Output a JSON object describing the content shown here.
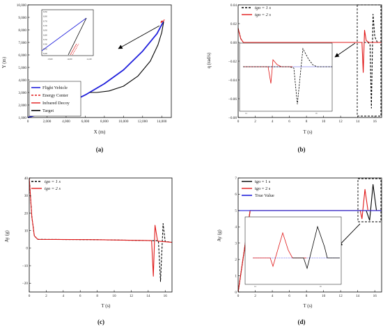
{
  "chart_data": [
    {
      "id": "a",
      "type": "line",
      "caption": "(a)",
      "xlabel": "X (m)",
      "ylabel": "Y (m)",
      "xlim": [
        0,
        15000
      ],
      "ylim": [
        1000,
        10000
      ],
      "xticks": [
        0,
        2000,
        4000,
        6000,
        8000,
        10000,
        12000,
        14000
      ],
      "xtick_labels": [
        "0",
        "2,000",
        "4,000",
        "6,000",
        "8,000",
        "10,000",
        "12,000",
        "14,000"
      ],
      "yticks": [
        1000,
        2000,
        3000,
        4000,
        5000,
        6000,
        7000,
        8000,
        9000,
        10000
      ],
      "ytick_labels": [
        "1,000",
        "2,000",
        "3,000",
        "4,000",
        "5,000",
        "6,000",
        "7,000",
        "8,000",
        "9,000",
        "10,000"
      ],
      "legend": {
        "placement": "bottom-left",
        "entries": [
          "Flight Vehicle",
          "Energy Center",
          "Infrared Decoy",
          "Target"
        ]
      },
      "series": [
        {
          "name": "Flight Vehicle",
          "color": "#1f1fdc",
          "style": "solid",
          "points": [
            [
              0,
              1000
            ],
            [
              2000,
              1450
            ],
            [
              4000,
              2050
            ],
            [
              6000,
              2800
            ],
            [
              8000,
              3700
            ],
            [
              10000,
              4800
            ],
            [
              12000,
              6300
            ],
            [
              13500,
              7700
            ],
            [
              14100,
              8550
            ],
            [
              14200,
              8650
            ]
          ]
        },
        {
          "name": "Target",
          "color": "#000000",
          "style": "solid",
          "points": [
            [
              6500,
              3000
            ],
            [
              7200,
              3000
            ],
            [
              8500,
              3120
            ],
            [
              10000,
              3500
            ],
            [
              11500,
              4300
            ],
            [
              12800,
              5500
            ],
            [
              13600,
              6800
            ],
            [
              14000,
              7800
            ],
            [
              14200,
              8650
            ]
          ]
        },
        {
          "name": "Infrared Decoy",
          "color": "#e01818",
          "style": "solid",
          "points": [
            [
              13900,
              8560
            ],
            [
              14100,
              8700
            ],
            [
              14250,
              8720
            ]
          ]
        },
        {
          "name": "Energy Center",
          "color": "#e01818",
          "style": "dashed",
          "points": [
            [
              13900,
              8620
            ],
            [
              14100,
              8760
            ],
            [
              14300,
              8800
            ]
          ]
        }
      ],
      "inset": {
        "xtick_labels": [
          "13,900",
          "14,000",
          "14,100"
        ],
        "ytick_labels": [
          "8,400",
          "8,450",
          "8,500",
          "8,550",
          "8,600",
          "8,650",
          "8,700",
          "8,750",
          "8,800",
          "8,850"
        ]
      },
      "annotation": "arrow from zoom region to inset"
    },
    {
      "id": "b",
      "type": "line",
      "caption": "(b)",
      "xlabel": "T (s)",
      "ylabel": "q (rad/s)",
      "xlim": [
        0,
        16.8
      ],
      "ylim": [
        -0.08,
        0.04
      ],
      "xticks": [
        0,
        2,
        4,
        6,
        8,
        10,
        12,
        14,
        16
      ],
      "yticks": [
        -0.08,
        -0.06,
        -0.04,
        -0.02,
        0.0,
        0.02,
        0.04
      ],
      "ytick_labels": [
        "−0.08",
        "−0.06",
        "−0.04",
        "−0.02",
        "0.00",
        "0.02",
        "0.04"
      ],
      "legend": {
        "placement": "top-left",
        "entries": [
          "tgo = 1 s",
          "tgo = 2 s"
        ]
      },
      "series": [
        {
          "name": "tgo = 1 s",
          "color": "#000000",
          "style": "dashed",
          "points": [
            [
              0,
              0.015
            ],
            [
              0.3,
              0.004
            ],
            [
              0.6,
              0
            ],
            [
              15.2,
              0
            ],
            [
              15.45,
              -0.002
            ],
            [
              15.6,
              -0.07
            ],
            [
              15.8,
              0.03
            ],
            [
              16.0,
              0.006
            ],
            [
              16.3,
              0
            ],
            [
              16.8,
              0
            ]
          ]
        },
        {
          "name": "tgo = 2 s",
          "color": "#e01818",
          "style": "solid",
          "points": [
            [
              0,
              0.015
            ],
            [
              0.3,
              0.004
            ],
            [
              0.6,
              0
            ],
            [
              14.5,
              0
            ],
            [
              14.65,
              -0.032
            ],
            [
              14.8,
              0.013
            ],
            [
              15.0,
              0.002
            ],
            [
              15.3,
              0
            ],
            [
              16.8,
              0
            ]
          ]
        }
      ],
      "annotation": "dashed zoom box around 14–16.5 s; inset enlarges it"
    },
    {
      "id": "c",
      "type": "line",
      "caption": "(c)",
      "xlabel": "T (s)",
      "ylabel": "Ay (g)",
      "xlim": [
        0,
        16.8
      ],
      "ylim": [
        -25,
        40
      ],
      "xticks": [
        0,
        2,
        4,
        6,
        8,
        10,
        12,
        14,
        16
      ],
      "yticks": [
        -20,
        -10,
        0,
        10,
        20,
        30,
        40
      ],
      "ytick_labels": [
        "−20",
        "−10",
        "0",
        "10",
        "20",
        "30",
        "40"
      ],
      "legend": {
        "placement": "top-left",
        "entries": [
          "tgo = 1 s",
          "tgo = 2 s"
        ]
      },
      "series": [
        {
          "name": "tgo = 1 s",
          "color": "#000000",
          "style": "dashed",
          "points": [
            [
              0,
              40
            ],
            [
              0.3,
              18
            ],
            [
              0.6,
              7
            ],
            [
              1,
              5
            ],
            [
              8,
              4.8
            ],
            [
              15.2,
              4.2
            ],
            [
              15.45,
              -19
            ],
            [
              15.75,
              14
            ],
            [
              16.0,
              3.8
            ],
            [
              16.8,
              3.3
            ]
          ]
        },
        {
          "name": "tgo = 2 s",
          "color": "#e01818",
          "style": "solid",
          "points": [
            [
              0,
              40
            ],
            [
              0.3,
              18
            ],
            [
              0.6,
              7
            ],
            [
              1,
              5
            ],
            [
              8,
              4.8
            ],
            [
              14.4,
              4.3
            ],
            [
              14.6,
              -16
            ],
            [
              14.8,
              13
            ],
            [
              15.1,
              4
            ],
            [
              16.8,
              3.3
            ]
          ]
        }
      ]
    },
    {
      "id": "d",
      "type": "line",
      "caption": "(d)",
      "xlabel": "T (s)",
      "ylabel": "Ay (g)",
      "xlim": [
        0,
        16.8
      ],
      "ylim": [
        0,
        7
      ],
      "xticks": [
        0,
        2,
        4,
        6,
        8,
        10,
        12,
        14,
        16
      ],
      "yticks": [
        0,
        1,
        2,
        3,
        4,
        5,
        6,
        7
      ],
      "ytick_labels": [
        "0",
        "1",
        "2",
        "3",
        "4",
        "5",
        "6",
        "7"
      ],
      "legend": {
        "placement": "top-left",
        "entries": [
          "tgo = 1 s",
          "tgo = 2 s",
          "True Value"
        ]
      },
      "series": [
        {
          "name": "tgo = 1 s",
          "color": "#000000",
          "style": "solid",
          "points": [
            [
              0,
              0
            ],
            [
              1.4,
              5
            ],
            [
              15.0,
              5
            ],
            [
              15.4,
              4.4
            ],
            [
              15.8,
              6.6
            ],
            [
              16.2,
              5
            ],
            [
              16.8,
              5
            ]
          ]
        },
        {
          "name": "tgo = 2 s",
          "color": "#e01818",
          "style": "solid",
          "points": [
            [
              0,
              0
            ],
            [
              1.4,
              5
            ],
            [
              14.3,
              5
            ],
            [
              14.5,
              4.5
            ],
            [
              14.85,
              6.3
            ],
            [
              15.2,
              5
            ],
            [
              16.8,
              5
            ]
          ]
        },
        {
          "name": "True Value",
          "color": "#1f1fdc",
          "style": "solid",
          "points": [
            [
              0,
              5
            ],
            [
              16.8,
              5
            ]
          ]
        }
      ],
      "annotation": "dashed zoom box around 14–16.5 s; arrow to inset"
    }
  ]
}
